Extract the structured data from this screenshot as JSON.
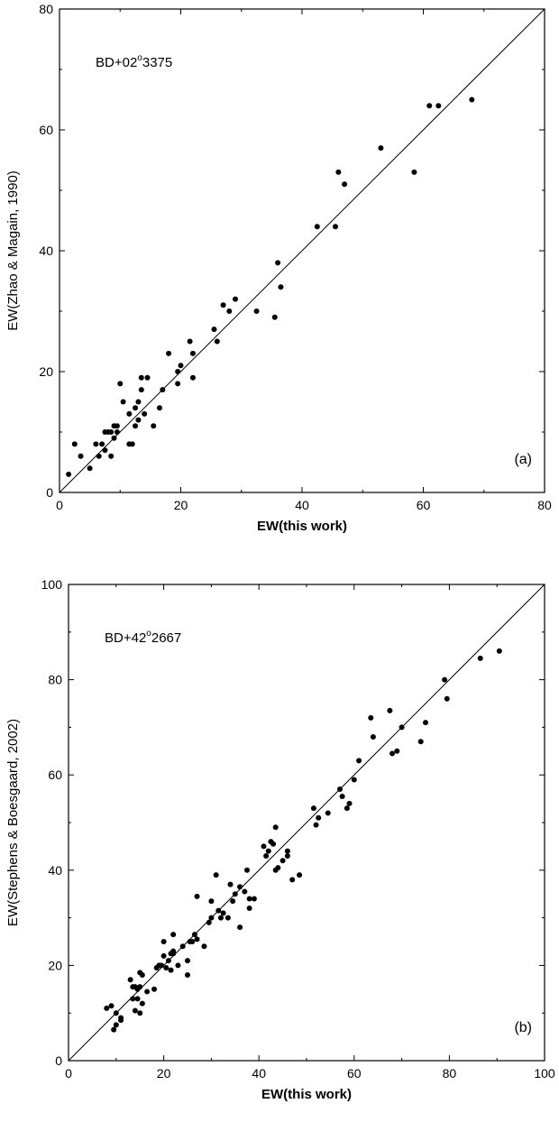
{
  "chart_data": [
    {
      "type": "scatter",
      "title": "",
      "panel_label": "(a)",
      "star_label": {
        "prefix": "BD+02",
        "sup": "o",
        "suffix": "3375"
      },
      "xlabel": "EW(this work)",
      "ylabel": "EW(Zhao & Magain, 1990)",
      "xlim": [
        0,
        80
      ],
      "ylim": [
        0,
        80
      ],
      "xticks": [
        0,
        20,
        40,
        60,
        80
      ],
      "yticks": [
        0,
        20,
        40,
        60,
        80
      ],
      "minor_step": 10,
      "reference_line": "y = x",
      "points": [
        [
          1.5,
          3
        ],
        [
          2.5,
          8
        ],
        [
          3.5,
          6
        ],
        [
          5,
          4
        ],
        [
          6,
          8
        ],
        [
          6.5,
          6
        ],
        [
          7,
          8
        ],
        [
          7.5,
          7
        ],
        [
          7.5,
          10
        ],
        [
          8,
          10
        ],
        [
          8.5,
          6
        ],
        [
          8.5,
          10
        ],
        [
          9,
          11
        ],
        [
          9,
          9
        ],
        [
          9.5,
          10
        ],
        [
          9.5,
          11
        ],
        [
          10,
          18
        ],
        [
          10.5,
          15
        ],
        [
          11.5,
          13
        ],
        [
          11.5,
          8
        ],
        [
          12,
          8
        ],
        [
          12.5,
          11
        ],
        [
          12.5,
          14
        ],
        [
          13,
          15
        ],
        [
          13,
          12
        ],
        [
          13.5,
          17
        ],
        [
          13.5,
          19
        ],
        [
          14,
          13
        ],
        [
          14.5,
          19
        ],
        [
          15.5,
          11
        ],
        [
          16.5,
          14
        ],
        [
          17,
          17
        ],
        [
          18,
          23
        ],
        [
          19.5,
          18
        ],
        [
          19.5,
          20
        ],
        [
          20,
          21
        ],
        [
          21.5,
          25
        ],
        [
          22,
          23
        ],
        [
          22,
          19
        ],
        [
          25.5,
          27
        ],
        [
          26,
          25
        ],
        [
          27,
          31
        ],
        [
          28,
          30
        ],
        [
          29,
          32
        ],
        [
          32.5,
          30
        ],
        [
          35.5,
          29
        ],
        [
          36,
          38
        ],
        [
          36.5,
          34
        ],
        [
          42.5,
          44
        ],
        [
          45.5,
          44
        ],
        [
          46,
          53
        ],
        [
          47,
          51
        ],
        [
          53,
          57
        ],
        [
          58.5,
          53
        ],
        [
          61,
          64
        ],
        [
          62.5,
          64
        ],
        [
          68,
          65
        ]
      ]
    },
    {
      "type": "scatter",
      "title": "",
      "panel_label": "(b)",
      "star_label": {
        "prefix": "BD+42",
        "sup": "o",
        "suffix": "2667"
      },
      "xlabel": "EW(this work)",
      "ylabel": "EW(Stephens & Boesgaard, 2002)",
      "xlim": [
        0,
        100
      ],
      "ylim": [
        0,
        100
      ],
      "xticks": [
        0,
        20,
        40,
        60,
        80,
        100
      ],
      "yticks": [
        0,
        20,
        40,
        60,
        80,
        100
      ],
      "minor_step": 10,
      "reference_line": "y = x",
      "points": [
        [
          8,
          11
        ],
        [
          9,
          11.5
        ],
        [
          9.5,
          6.5
        ],
        [
          10,
          7.5
        ],
        [
          10,
          10
        ],
        [
          11,
          8.5
        ],
        [
          11,
          9
        ],
        [
          13,
          17
        ],
        [
          13.5,
          13
        ],
        [
          13.5,
          15.5
        ],
        [
          14,
          15.5
        ],
        [
          14,
          10.5
        ],
        [
          14.5,
          13
        ],
        [
          14.5,
          15
        ],
        [
          15,
          10
        ],
        [
          15,
          15.5
        ],
        [
          15,
          18.5
        ],
        [
          15.5,
          18
        ],
        [
          15.5,
          12
        ],
        [
          16.5,
          14.5
        ],
        [
          18,
          15
        ],
        [
          18.5,
          19.5
        ],
        [
          19,
          20
        ],
        [
          19.5,
          20
        ],
        [
          20,
          22
        ],
        [
          20,
          25
        ],
        [
          20.5,
          19.5
        ],
        [
          21,
          21
        ],
        [
          21.5,
          19
        ],
        [
          21.5,
          22.5
        ],
        [
          22,
          22.5
        ],
        [
          22,
          26.5
        ],
        [
          22,
          23
        ],
        [
          23,
          20
        ],
        [
          24,
          24
        ],
        [
          25,
          21
        ],
        [
          25,
          18
        ],
        [
          25.5,
          25
        ],
        [
          26,
          25
        ],
        [
          26.5,
          26.5
        ],
        [
          27,
          34.5
        ],
        [
          27,
          25.5
        ],
        [
          28.5,
          24
        ],
        [
          29.5,
          29
        ],
        [
          30,
          30
        ],
        [
          30,
          33.5
        ],
        [
          31,
          39
        ],
        [
          31.5,
          31.5
        ],
        [
          32,
          30
        ],
        [
          32.5,
          31
        ],
        [
          33.5,
          30
        ],
        [
          34,
          37
        ],
        [
          34.5,
          33.5
        ],
        [
          35,
          35
        ],
        [
          36,
          28
        ],
        [
          36,
          36.5
        ],
        [
          37,
          35.5
        ],
        [
          37.5,
          40
        ],
        [
          38,
          32
        ],
        [
          38,
          34
        ],
        [
          39,
          34
        ],
        [
          41,
          45
        ],
        [
          41.5,
          43
        ],
        [
          42,
          44
        ],
        [
          42.5,
          46
        ],
        [
          43,
          45.5
        ],
        [
          43.5,
          49
        ],
        [
          43.5,
          40
        ],
        [
          44,
          40.5
        ],
        [
          45,
          42
        ],
        [
          46,
          44
        ],
        [
          46,
          43
        ],
        [
          47,
          38
        ],
        [
          48.5,
          39
        ],
        [
          51.5,
          53
        ],
        [
          52,
          49.5
        ],
        [
          52.5,
          51
        ],
        [
          54.5,
          52
        ],
        [
          57,
          57
        ],
        [
          57.5,
          55.5
        ],
        [
          58.5,
          53
        ],
        [
          59,
          54
        ],
        [
          60,
          59
        ],
        [
          61,
          63
        ],
        [
          63.5,
          72
        ],
        [
          64,
          68
        ],
        [
          67.5,
          73.5
        ],
        [
          68,
          64.5
        ],
        [
          69,
          65
        ],
        [
          70,
          70
        ],
        [
          74,
          67
        ],
        [
          75,
          71
        ],
        [
          79,
          80
        ],
        [
          79.5,
          76
        ],
        [
          86.5,
          84.5
        ],
        [
          90.5,
          86
        ]
      ]
    }
  ]
}
